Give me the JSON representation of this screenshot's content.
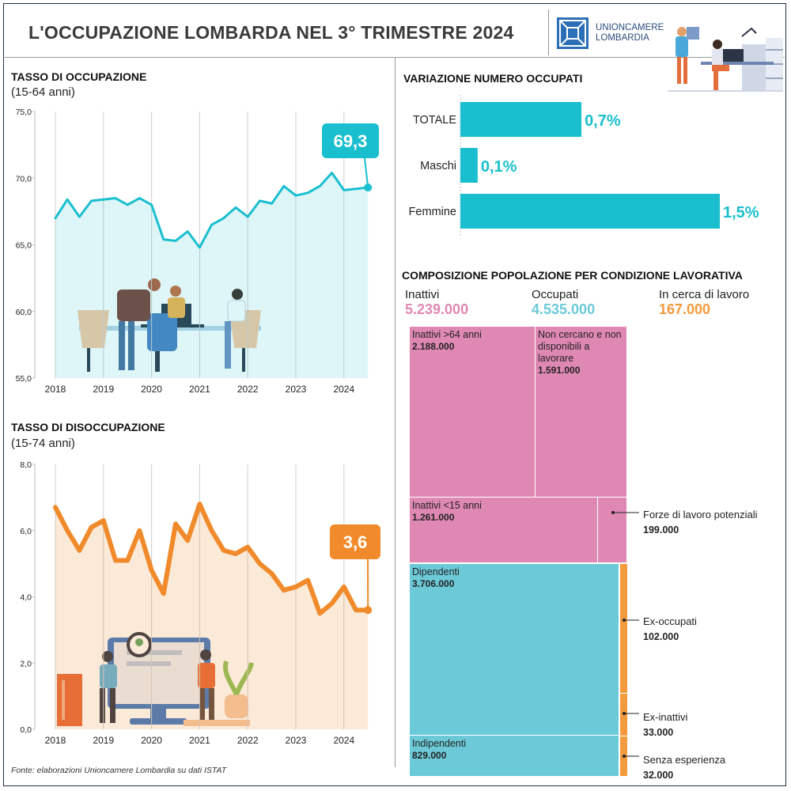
{
  "header": {
    "title": "L'OCCUPAZIONE LOMBARDA NEL 3° TRIMESTRE 2024",
    "logo_line1": "UNIONCAMERE",
    "logo_line2": "LOMBARDIA"
  },
  "employment": {
    "title": "TASSO DI OCCUPAZIONE",
    "subtitle": "(15-64 anni)",
    "last_value_label": "69,3"
  },
  "unemployment": {
    "title": "TASSO DI DISOCCUPAZIONE",
    "subtitle": "(15-74 anni)",
    "last_value_label": "3,6"
  },
  "variation": {
    "title": "VARIAZIONE NUMERO OCCUPATI"
  },
  "composition": {
    "title": "COMPOSIZIONE POPOLAZIONE PER CONDIZIONE LAVORATIVA",
    "legend": [
      {
        "label": "Inattivi",
        "value": "5.239.000",
        "color": "#e088b4"
      },
      {
        "label": "Occupati",
        "value": "4.535.000",
        "color": "#6ccad8"
      },
      {
        "label": "In cerca di lavoro",
        "value": "167.000",
        "color": "#f39a3c"
      }
    ],
    "cells": {
      "inattivi_64": {
        "label": "Inattivi >64 anni",
        "value": "2.188.000"
      },
      "non_cercano": {
        "label": "Non cercano e non disponibili a lavorare",
        "value": "1.591.000"
      },
      "inattivi_15": {
        "label": "Inattivi <15 anni",
        "value": "1.261.000"
      },
      "dipendenti": {
        "label": "Dipendenti",
        "value": "3.706.000"
      },
      "indipendenti": {
        "label": "Indipendenti",
        "value": "829.000"
      }
    },
    "callouts": {
      "forze_potenziali": {
        "label": "Forze di lavoro potenziali",
        "value": "199.000"
      },
      "ex_occupati": {
        "label": "Ex-occupati",
        "value": "102.000"
      },
      "ex_inattivi": {
        "label": "Ex-inattivi",
        "value": "33.000"
      },
      "senza_esperienza": {
        "label": "Senza esperienza",
        "value": "32.000"
      }
    }
  },
  "source": "Fonte: elaborazioni Unioncamere Lombardia su dati ISTAT",
  "colors": {
    "teal": "#19bfcf",
    "orange": "#f08a2a",
    "pink": "#e088b4",
    "lightblue": "#6ccad8"
  },
  "chart_data": [
    {
      "type": "area",
      "title": "TASSO DI OCCUPAZIONE",
      "subtitle": "(15-64 anni)",
      "x_ticks": [
        "2018",
        "2019",
        "2020",
        "2021",
        "2022",
        "2023",
        "2024"
      ],
      "y_ticks": [
        "75,0",
        "70,0",
        "65,0",
        "60,0",
        "55,0"
      ],
      "ylim": [
        55,
        75
      ],
      "x": [
        2018.0,
        2018.25,
        2018.5,
        2018.75,
        2019.0,
        2019.25,
        2019.5,
        2019.75,
        2020.0,
        2020.25,
        2020.5,
        2020.75,
        2021.0,
        2021.25,
        2021.5,
        2021.75,
        2022.0,
        2022.25,
        2022.5,
        2022.75,
        2023.0,
        2023.25,
        2023.5,
        2023.75,
        2024.0,
        2024.25,
        2024.5
      ],
      "values": [
        67.0,
        68.4,
        67.1,
        68.3,
        68.4,
        68.5,
        68.0,
        68.5,
        68.0,
        65.4,
        65.3,
        66.0,
        64.8,
        66.5,
        67.0,
        67.8,
        67.1,
        68.3,
        68.1,
        69.4,
        68.7,
        68.9,
        69.4,
        70.4,
        69.1,
        69.2,
        69.3
      ],
      "series_color": "#19bfcf",
      "annotation": "69,3"
    },
    {
      "type": "area",
      "title": "TASSO DI DISOCCUPAZIONE",
      "subtitle": "(15-74 anni)",
      "x_ticks": [
        "2018",
        "2019",
        "2020",
        "2021",
        "2022",
        "2023",
        "2024"
      ],
      "y_ticks": [
        "8,0",
        "6,0",
        "4,0",
        "2,0",
        "0,0"
      ],
      "ylim": [
        0,
        8
      ],
      "x": [
        2018.0,
        2018.25,
        2018.5,
        2018.75,
        2019.0,
        2019.25,
        2019.5,
        2019.75,
        2020.0,
        2020.25,
        2020.5,
        2020.75,
        2021.0,
        2021.25,
        2021.5,
        2021.75,
        2022.0,
        2022.25,
        2022.5,
        2022.75,
        2023.0,
        2023.25,
        2023.5,
        2023.75,
        2024.0,
        2024.25,
        2024.5
      ],
      "values": [
        6.7,
        6.0,
        5.4,
        6.1,
        6.3,
        5.1,
        5.1,
        6.0,
        4.8,
        4.1,
        6.2,
        5.7,
        6.8,
        6.0,
        5.4,
        5.3,
        5.5,
        5.0,
        4.7,
        4.2,
        4.3,
        4.5,
        3.5,
        3.8,
        4.3,
        3.6,
        3.6
      ],
      "series_color": "#f08a2a",
      "annotation": "3,6"
    },
    {
      "type": "bar",
      "orientation": "horizontal",
      "title": "VARIAZIONE NUMERO OCCUPATI",
      "categories": [
        "TOTALE",
        "Maschi",
        "Femmine"
      ],
      "values": [
        0.7,
        0.1,
        1.5
      ],
      "value_labels": [
        "0,7%",
        "0,1%",
        "1,5%"
      ],
      "series_color": "#19bfcf"
    },
    {
      "type": "treemap",
      "title": "COMPOSIZIONE POPOLAZIONE PER CONDIZIONE LAVORATIVA",
      "groups": [
        {
          "name": "Inattivi",
          "total": 5239000,
          "items": [
            {
              "name": "Inattivi >64 anni",
              "value": 2188000
            },
            {
              "name": "Non cercano e non disponibili a lavorare",
              "value": 1591000
            },
            {
              "name": "Inattivi <15 anni",
              "value": 1261000
            },
            {
              "name": "Forze di lavoro potenziali",
              "value": 199000
            }
          ]
        },
        {
          "name": "Occupati",
          "total": 4535000,
          "items": [
            {
              "name": "Dipendenti",
              "value": 3706000
            },
            {
              "name": "Indipendenti",
              "value": 829000
            }
          ]
        },
        {
          "name": "In cerca di lavoro",
          "total": 167000,
          "items": [
            {
              "name": "Ex-occupati",
              "value": 102000
            },
            {
              "name": "Ex-inattivi",
              "value": 33000
            },
            {
              "name": "Senza esperienza",
              "value": 32000
            }
          ]
        }
      ]
    }
  ]
}
